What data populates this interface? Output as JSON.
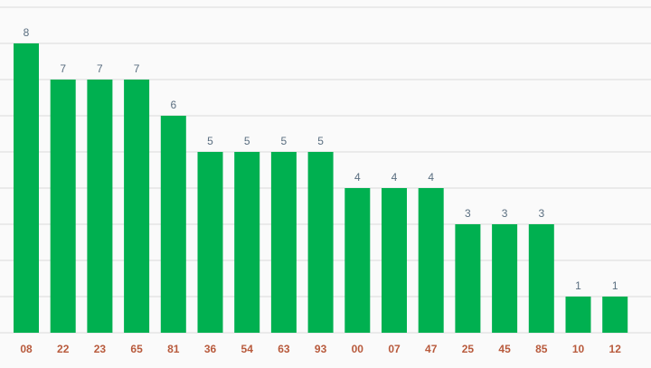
{
  "chart_data": {
    "type": "bar",
    "categories": [
      "08",
      "22",
      "23",
      "65",
      "81",
      "36",
      "54",
      "63",
      "93",
      "00",
      "07",
      "47",
      "25",
      "45",
      "85",
      "10",
      "12"
    ],
    "values": [
      8,
      7,
      7,
      7,
      6,
      5,
      5,
      5,
      5,
      4,
      4,
      4,
      3,
      3,
      3,
      1,
      1
    ],
    "title": "",
    "xlabel": "",
    "ylabel": "",
    "ylim": [
      0,
      9
    ],
    "grid": true,
    "bar_color": "#00b050",
    "value_label_color": "#5a6e80",
    "tick_label_color": "#b85a3c",
    "grid_color": "#d9d9d9"
  }
}
